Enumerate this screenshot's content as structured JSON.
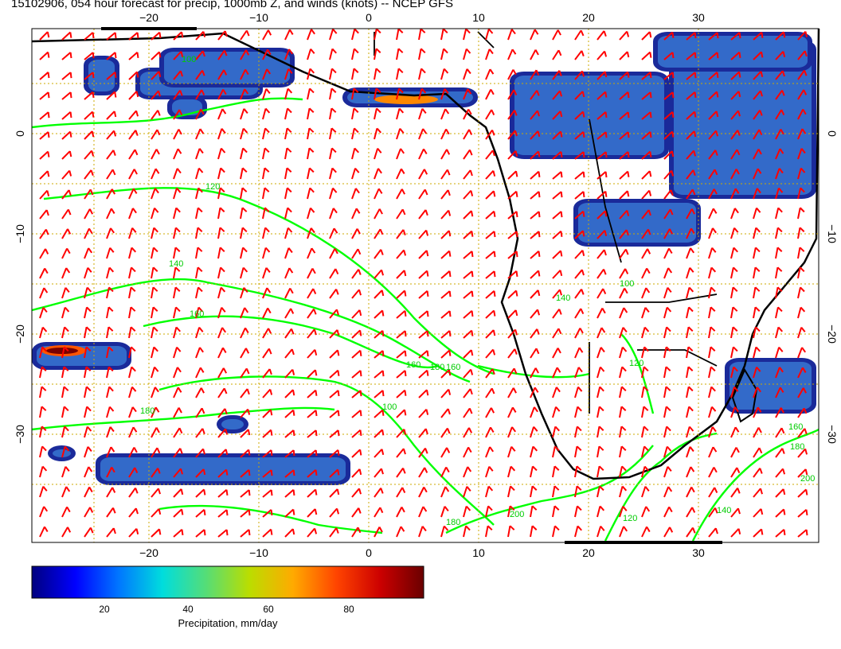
{
  "title": "15102906, 054 hour forecast for precip, 1000mb Z, and winds (knots) -- NCEP GFS",
  "map": {
    "lon_labels": [
      "−20",
      "−10",
      "0",
      "10",
      "20",
      "30"
    ],
    "lat_labels": [
      "0",
      "−10",
      "−20",
      "−30"
    ],
    "contour_labels": [
      "100",
      "120",
      "140",
      "160",
      "180",
      "100",
      "120",
      "140",
      "160",
      "180",
      "160",
      "180",
      "200",
      "120",
      "100",
      "140",
      "160",
      "180",
      "200"
    ],
    "colors": {
      "wind_barbs": "#ff0000",
      "contours": "#00ff00",
      "coastline": "#000000",
      "grid": "#ccaa00"
    }
  },
  "colorbar": {
    "title": "Precipitation, mm/day",
    "ticks": [
      "20",
      "40",
      "60",
      "80"
    ],
    "colors": [
      "#00007f",
      "#0000ff",
      "#0077ff",
      "#00dddd",
      "#55dd77",
      "#bbdd00",
      "#ffaa00",
      "#ff4400",
      "#cc0000",
      "#6a0000"
    ]
  }
}
